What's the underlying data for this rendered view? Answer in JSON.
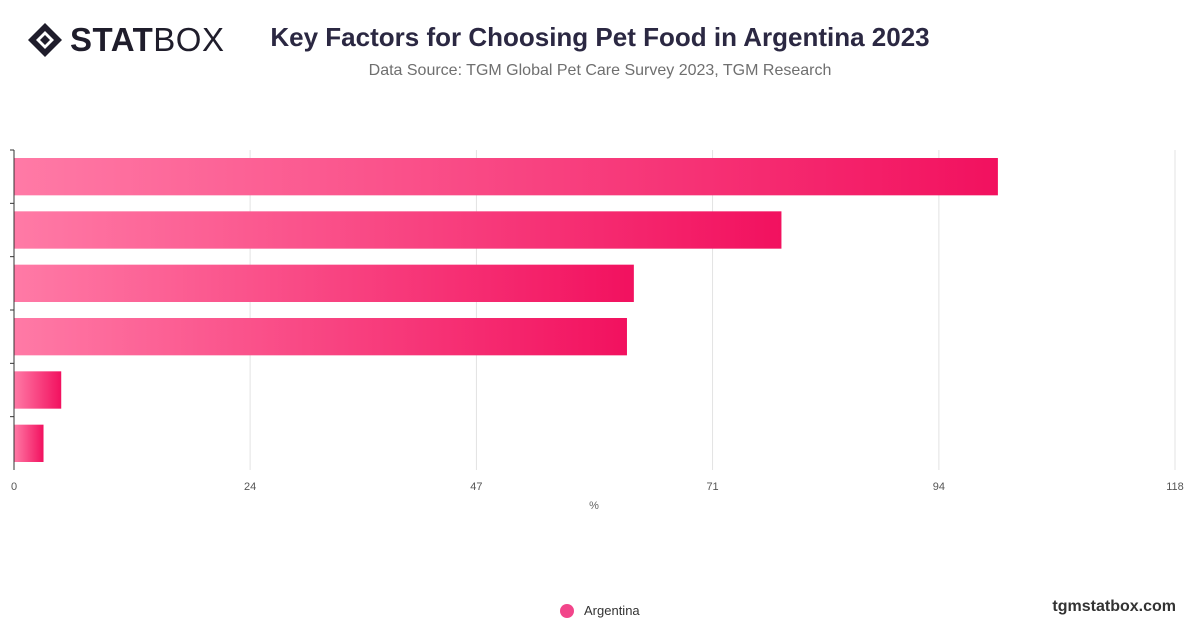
{
  "logo": {
    "bold": "STAT",
    "light": "BOX",
    "icon": "statbox-diamond-icon"
  },
  "header": {
    "title": "Key Factors for Choosing Pet Food in Argentina 2023",
    "subtitle": "Data Source: TGM Global Pet Care Survey 2023, TGM Research"
  },
  "footer": {
    "brand": "tgmstatbox.com"
  },
  "colors": {
    "bar_start": "#ff7aa6",
    "bar_end": "#f2115f",
    "legend": "#f2458a"
  },
  "chart_data": {
    "type": "bar",
    "orientation": "horizontal",
    "categories": [
      "",
      "",
      "",
      "",
      "",
      ""
    ],
    "series": [
      {
        "name": "Argentina",
        "values": [
          100,
          78,
          63,
          62.3,
          4.8,
          3
        ]
      }
    ],
    "xlabel": "%",
    "xlim": [
      0,
      118
    ],
    "xticks": [
      0,
      24,
      47,
      71,
      94,
      118
    ],
    "grid": true,
    "legend_position": "bottom-center"
  }
}
